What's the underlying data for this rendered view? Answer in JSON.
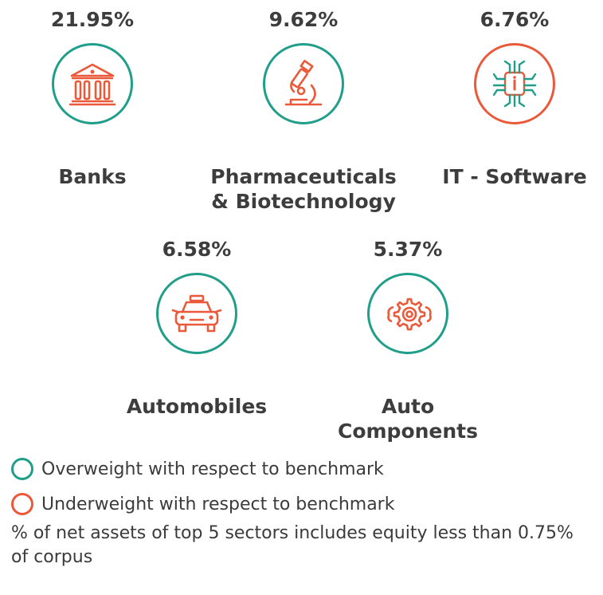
{
  "chart_data": {
    "type": "table",
    "sectors": [
      {
        "name_line1": "Banks",
        "name_line2": "",
        "value": "21.95%",
        "weight": "overweight",
        "icon": "bank-icon"
      },
      {
        "name_line1": "Pharmaceuticals",
        "name_line2": "& Biotechnology",
        "value": "9.62%",
        "weight": "overweight",
        "icon": "microscope-icon"
      },
      {
        "name_line1": "IT - Software",
        "name_line2": "",
        "value": "6.76%",
        "weight": "underweight",
        "icon": "chip-icon"
      },
      {
        "name_line1": "Automobiles",
        "name_line2": "",
        "value": "6.58%",
        "weight": "overweight",
        "icon": "car-icon"
      },
      {
        "name_line1": "Auto",
        "name_line2": "Components",
        "value": "5.37%",
        "weight": "overweight",
        "icon": "gears-icon"
      }
    ]
  },
  "legend": {
    "overweight": "Overweight with respect to benchmark",
    "underweight": "Underweight with respect to benchmark"
  },
  "footnote": "% of net assets of top 5 sectors includes equity less than 0.75% of corpus",
  "colors": {
    "overweight": "#1f9e8a",
    "underweight": "#ea5a3a",
    "icon_red": "#ea5a3a",
    "icon_green": "#1f9e8a"
  }
}
